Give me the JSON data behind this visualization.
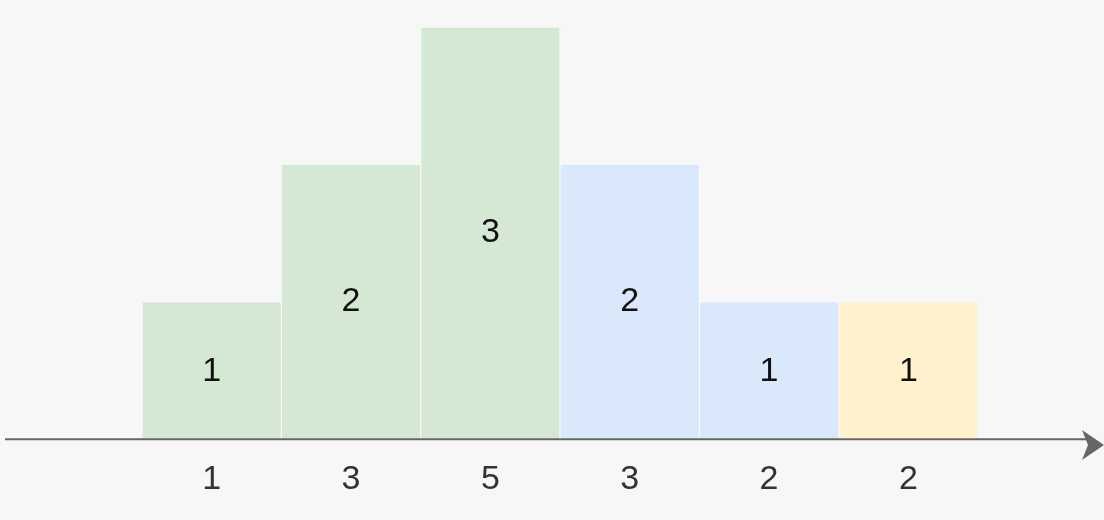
{
  "chart_data": {
    "type": "bar",
    "categories": [
      "1",
      "3",
      "5",
      "3",
      "2",
      "2"
    ],
    "values": [
      1,
      2,
      3,
      2,
      1,
      1
    ],
    "colors": [
      "#d5e8d4",
      "#d5e8d4",
      "#d5e8d4",
      "#dae8fc",
      "#dae8fc",
      "#fff2cc"
    ],
    "data_labels": true,
    "grid": false,
    "legend": false
  }
}
